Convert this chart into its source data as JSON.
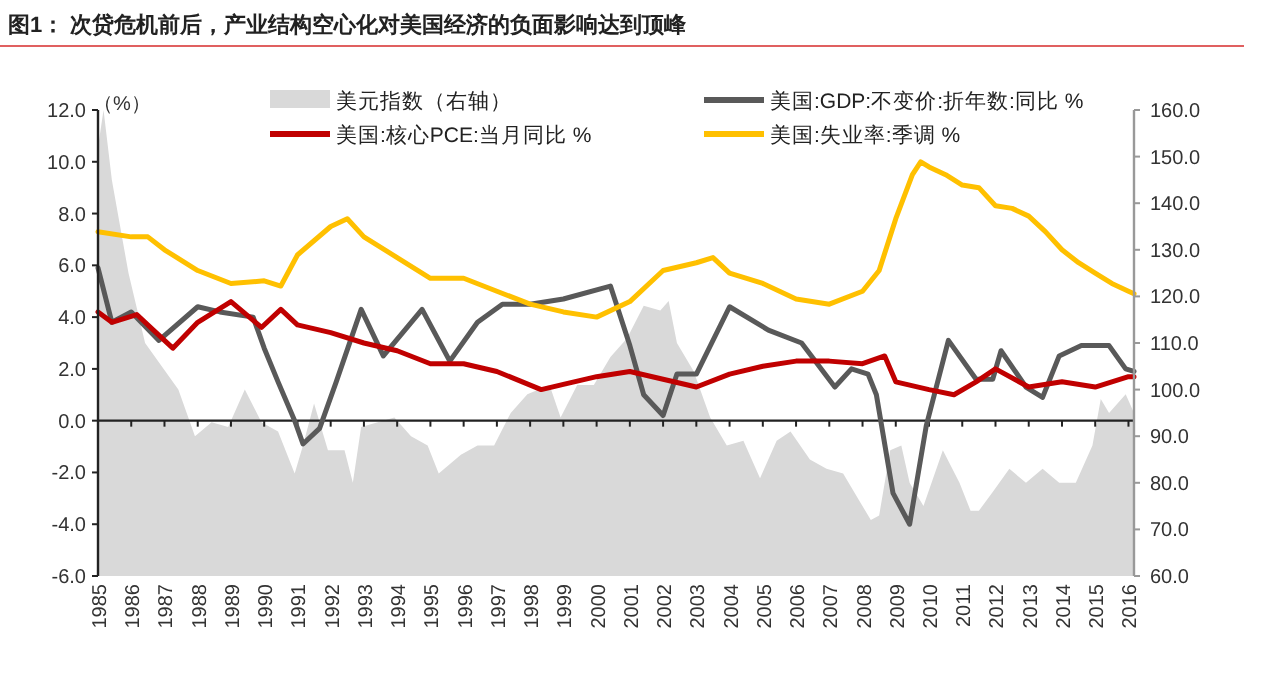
{
  "chart_data": {
    "type": "line",
    "title": "图1：  次贷危机前后，产业结构空心化对美国经济的负面影响达到顶峰",
    "ylabel": "（%）",
    "xlim": [
      "1985-01",
      "2016-03"
    ],
    "xticks": [
      "1985",
      "1986",
      "1987",
      "1988",
      "1989",
      "1990",
      "1991",
      "1992",
      "1993",
      "1994",
      "1995",
      "1996",
      "1997",
      "1998",
      "1999",
      "2000",
      "2001",
      "2002",
      "2003",
      "2004",
      "2005",
      "2006",
      "2007",
      "2008",
      "2009",
      "2010",
      "2011",
      "2012",
      "2013",
      "2014",
      "2015",
      "2016"
    ],
    "ylim": [
      -6,
      12
    ],
    "yticks": [
      {
        "value": -6,
        "label": "-6.0"
      },
      {
        "value": -4,
        "label": "-4.0"
      },
      {
        "value": -2,
        "label": "-2.0"
      },
      {
        "value": 0,
        "label": "0.0"
      },
      {
        "value": 2,
        "label": "2.0"
      },
      {
        "value": 4,
        "label": "4.0"
      },
      {
        "value": 6,
        "label": "6.0"
      },
      {
        "value": 8,
        "label": "8.0"
      },
      {
        "value": 10,
        "label": "10.0"
      },
      {
        "value": 12,
        "label": "12.0"
      }
    ],
    "y2lim": [
      60,
      160
    ],
    "y2ticks": [
      {
        "value": 60,
        "label": "60.0"
      },
      {
        "value": 70,
        "label": "70.0"
      },
      {
        "value": 80,
        "label": "80.0"
      },
      {
        "value": 90,
        "label": "90.0"
      },
      {
        "value": 100,
        "label": "100.0"
      },
      {
        "value": 110,
        "label": "110.0"
      },
      {
        "value": 120,
        "label": "120.0"
      },
      {
        "value": 130,
        "label": "130.0"
      },
      {
        "value": 140,
        "label": "140.0"
      },
      {
        "value": 150,
        "label": "150.0"
      },
      {
        "value": 160,
        "label": "160.0"
      }
    ],
    "legend": "top",
    "series": [
      {
        "name": "美元指数（右轴）",
        "type": "area",
        "axis": "y2",
        "color": "#d9d9d9",
        "x": [
          "1985-01",
          "1985-03",
          "1985-06",
          "1985-12",
          "1986-06",
          "1986-12",
          "1987-06",
          "1987-12",
          "1988-06",
          "1988-12",
          "1989-06",
          "1989-12",
          "1990-06",
          "1990-12",
          "1991-03",
          "1991-07",
          "1991-12",
          "1992-06",
          "1992-09",
          "1992-12",
          "1993-06",
          "1993-12",
          "1994-06",
          "1994-12",
          "1995-04",
          "1995-12",
          "1996-06",
          "1996-12",
          "1997-06",
          "1997-12",
          "1998-08",
          "1998-12",
          "1999-06",
          "1999-12",
          "2000-06",
          "2000-12",
          "2001-06",
          "2001-12",
          "2002-03",
          "2002-06",
          "2002-12",
          "2003-06",
          "2003-12",
          "2004-06",
          "2004-12",
          "2005-06",
          "2005-11",
          "2006-06",
          "2006-12",
          "2007-06",
          "2007-12",
          "2008-04",
          "2008-07",
          "2008-11",
          "2009-03",
          "2009-06",
          "2009-11",
          "2010-06",
          "2010-12",
          "2011-04",
          "2011-07",
          "2011-12",
          "2012-06",
          "2012-12",
          "2013-06",
          "2013-12",
          "2014-06",
          "2014-12",
          "2015-03",
          "2015-06",
          "2015-12",
          "2016-03"
        ],
        "values": [
          152,
          160,
          145,
          125,
          110,
          105,
          100,
          90,
          93,
          92,
          100,
          93,
          91,
          82,
          88,
          97,
          87,
          87,
          80,
          92,
          93,
          94,
          90,
          88,
          82,
          86,
          88,
          88,
          95,
          99,
          101,
          94,
          101,
          101,
          107,
          111,
          118,
          117,
          119,
          110,
          104,
          94,
          88,
          89,
          81,
          89,
          91,
          85,
          83,
          82,
          76,
          72,
          73,
          87,
          88,
          80,
          75,
          87,
          80,
          74,
          74,
          78,
          83,
          80,
          83,
          80,
          80,
          88,
          98,
          95,
          99,
          95
        ]
      },
      {
        "name": "美国:GDP:不变价:折年数:同比 %",
        "color": "#595959",
        "x": [
          "1985-01",
          "1985-06",
          "1986-01",
          "1986-11",
          "1988-01",
          "1988-09",
          "1989-09",
          "1990-01",
          "1990-06",
          "1990-12",
          "1991-03",
          "1991-09",
          "1992-03",
          "1992-12",
          "1993-08",
          "1994-10",
          "1995-08",
          "1996-06",
          "1997-03",
          "1998-01",
          "1999-01",
          "2000-06",
          "2001-01",
          "2001-06",
          "2002-01",
          "2002-06",
          "2003-01",
          "2004-01",
          "2005-03",
          "2006-03",
          "2007-03",
          "2007-09",
          "2008-03",
          "2008-06",
          "2008-12",
          "2009-06",
          "2009-12",
          "2010-08",
          "2011-06",
          "2011-12",
          "2012-03",
          "2012-12",
          "2013-06",
          "2013-12",
          "2014-08",
          "2015-06",
          "2015-12",
          "2016-03"
        ],
        "values": [
          5.9,
          3.8,
          4.2,
          3.1,
          4.4,
          4.2,
          4.0,
          2.8,
          1.5,
          0.0,
          -0.9,
          -0.3,
          1.5,
          4.3,
          2.5,
          4.3,
          2.3,
          3.8,
          4.5,
          4.5,
          4.7,
          5.2,
          2.9,
          1.0,
          0.2,
          1.8,
          1.8,
          4.4,
          3.5,
          3.0,
          1.3,
          2.0,
          1.8,
          1.0,
          -2.8,
          -4.0,
          -0.2,
          3.1,
          1.6,
          1.6,
          2.7,
          1.3,
          0.9,
          2.5,
          2.9,
          2.9,
          2.0,
          1.9
        ]
      },
      {
        "name": "美国:核心PCE:当月同比 %",
        "color": "#c00000",
        "x": [
          "1985-01",
          "1985-06",
          "1986-03",
          "1986-09",
          "1987-04",
          "1988-01",
          "1989-01",
          "1989-12",
          "1990-07",
          "1991-01",
          "1992-01",
          "1993-01",
          "1994-01",
          "1995-01",
          "1996-01",
          "1997-01",
          "1998-05",
          "1999-01",
          "2000-01",
          "2001-01",
          "2002-01",
          "2003-01",
          "2004-01",
          "2005-01",
          "2006-01",
          "2007-01",
          "2008-01",
          "2008-09",
          "2009-01",
          "2010-01",
          "2010-10",
          "2011-06",
          "2012-01",
          "2013-01",
          "2014-01",
          "2015-01",
          "2016-01",
          "2016-03"
        ],
        "values": [
          4.2,
          3.8,
          4.1,
          3.5,
          2.8,
          3.8,
          4.6,
          3.6,
          4.3,
          3.7,
          3.4,
          3.0,
          2.7,
          2.2,
          2.2,
          1.9,
          1.2,
          1.4,
          1.7,
          1.9,
          1.6,
          1.3,
          1.8,
          2.1,
          2.3,
          2.3,
          2.2,
          2.5,
          1.5,
          1.2,
          1.0,
          1.5,
          2.0,
          1.3,
          1.5,
          1.3,
          1.7,
          1.7
        ]
      },
      {
        "name": "美国:失业率:季调 %",
        "color": "#ffc000",
        "x": [
          "1985-01",
          "1986-01",
          "1986-07",
          "1987-01",
          "1988-01",
          "1989-01",
          "1990-01",
          "1990-07",
          "1991-01",
          "1992-01",
          "1992-07",
          "1993-01",
          "1994-01",
          "1995-01",
          "1996-01",
          "1997-01",
          "1998-01",
          "1999-01",
          "2000-01",
          "2001-01",
          "2002-01",
          "2003-01",
          "2003-07",
          "2004-01",
          "2005-01",
          "2006-01",
          "2007-01",
          "2008-01",
          "2008-07",
          "2009-01",
          "2009-07",
          "2009-10",
          "2010-01",
          "2010-07",
          "2011-01",
          "2011-07",
          "2012-01",
          "2012-07",
          "2013-01",
          "2013-07",
          "2014-01",
          "2014-07",
          "2015-01",
          "2015-07",
          "2016-01",
          "2016-03"
        ],
        "values": [
          7.3,
          7.1,
          7.1,
          6.6,
          5.8,
          5.3,
          5.4,
          5.2,
          6.4,
          7.5,
          7.8,
          7.1,
          6.3,
          5.5,
          5.5,
          5.0,
          4.5,
          4.2,
          4.0,
          4.6,
          5.8,
          6.1,
          6.3,
          5.7,
          5.3,
          4.7,
          4.5,
          5.0,
          5.8,
          7.8,
          9.5,
          10.0,
          9.8,
          9.5,
          9.1,
          9.0,
          8.3,
          8.2,
          7.9,
          7.3,
          6.6,
          6.1,
          5.7,
          5.3,
          5.0,
          4.9
        ]
      }
    ]
  }
}
